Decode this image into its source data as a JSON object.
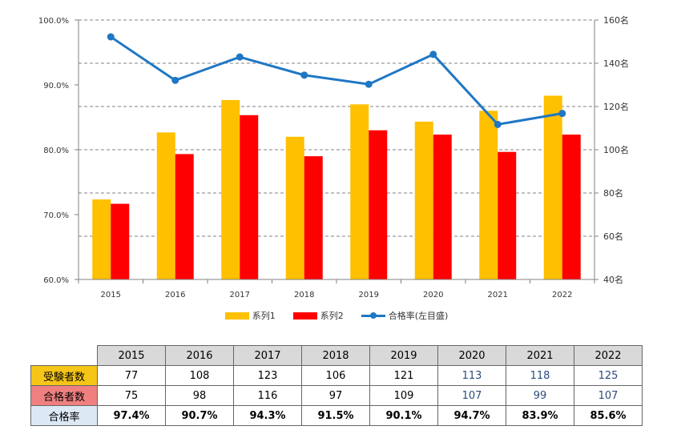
{
  "chart_data": {
    "type": "bar+line",
    "categories": [
      "2015",
      "2016",
      "2017",
      "2018",
      "2019",
      "2020",
      "2021",
      "2022"
    ],
    "series": [
      {
        "name": "系列1",
        "type": "bar",
        "axis": "right",
        "color": "#ffc000",
        "values": [
          77,
          108,
          123,
          106,
          121,
          113,
          118,
          125
        ]
      },
      {
        "name": "系列2",
        "type": "bar",
        "axis": "right",
        "color": "#ff0000",
        "values": [
          75,
          98,
          116,
          97,
          109,
          107,
          99,
          107
        ]
      },
      {
        "name": "合格率(左目盛)",
        "type": "line",
        "axis": "left",
        "color": "#1f77c4",
        "values": [
          97.4,
          90.7,
          94.3,
          91.5,
          90.1,
          94.7,
          83.9,
          85.6
        ]
      }
    ],
    "left_axis": {
      "min": 60,
      "max": 100,
      "ticks": [
        "60.0%",
        "70.0%",
        "80.0%",
        "90.0%",
        "100.0%"
      ]
    },
    "right_axis": {
      "min": 40,
      "max": 160,
      "ticks": [
        "40名",
        "60名",
        "80名",
        "100名",
        "120名",
        "140名",
        "160名"
      ]
    },
    "grid": "dashed horizontal",
    "legend_position": "bottom"
  },
  "legend": [
    "系列1",
    "系列2",
    "合格率(左目盛)"
  ],
  "table": {
    "years": [
      "2015",
      "2016",
      "2017",
      "2018",
      "2019",
      "2020",
      "2021",
      "2022"
    ],
    "rows": [
      {
        "label": "受験者数",
        "values": [
          "77",
          "108",
          "123",
          "106",
          "121",
          "113",
          "118",
          "125"
        ]
      },
      {
        "label": "合格者数",
        "values": [
          "75",
          "98",
          "116",
          "97",
          "109",
          "107",
          "99",
          "107"
        ]
      },
      {
        "label": "合格率",
        "values": [
          "97.4%",
          "90.7%",
          "94.3%",
          "91.5%",
          "90.1%",
          "94.7%",
          "83.9%",
          "85.6%"
        ]
      }
    ]
  }
}
